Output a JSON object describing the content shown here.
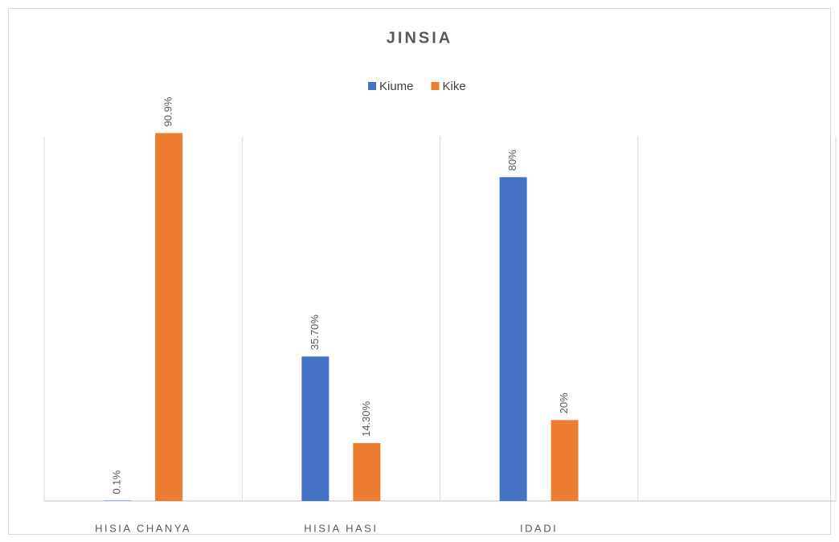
{
  "chart_data": {
    "type": "bar",
    "title": "JINSIA",
    "categories": [
      "HISIA CHANYA",
      "HISIA HASI",
      "IDADI",
      null
    ],
    "series": [
      {
        "name": "Kiume",
        "color": "#4472c4",
        "values": [
          0.1,
          35.7,
          80,
          null
        ],
        "value_labels": [
          "0.1%",
          "35.70%",
          "80%",
          null
        ]
      },
      {
        "name": "Kike",
        "color": "#ed7d31",
        "values": [
          90.9,
          14.3,
          20,
          null
        ],
        "value_labels": [
          "90.9%",
          "14.30%",
          "20%",
          null
        ]
      }
    ],
    "ylim": [
      0,
      90
    ],
    "legend": "top"
  }
}
